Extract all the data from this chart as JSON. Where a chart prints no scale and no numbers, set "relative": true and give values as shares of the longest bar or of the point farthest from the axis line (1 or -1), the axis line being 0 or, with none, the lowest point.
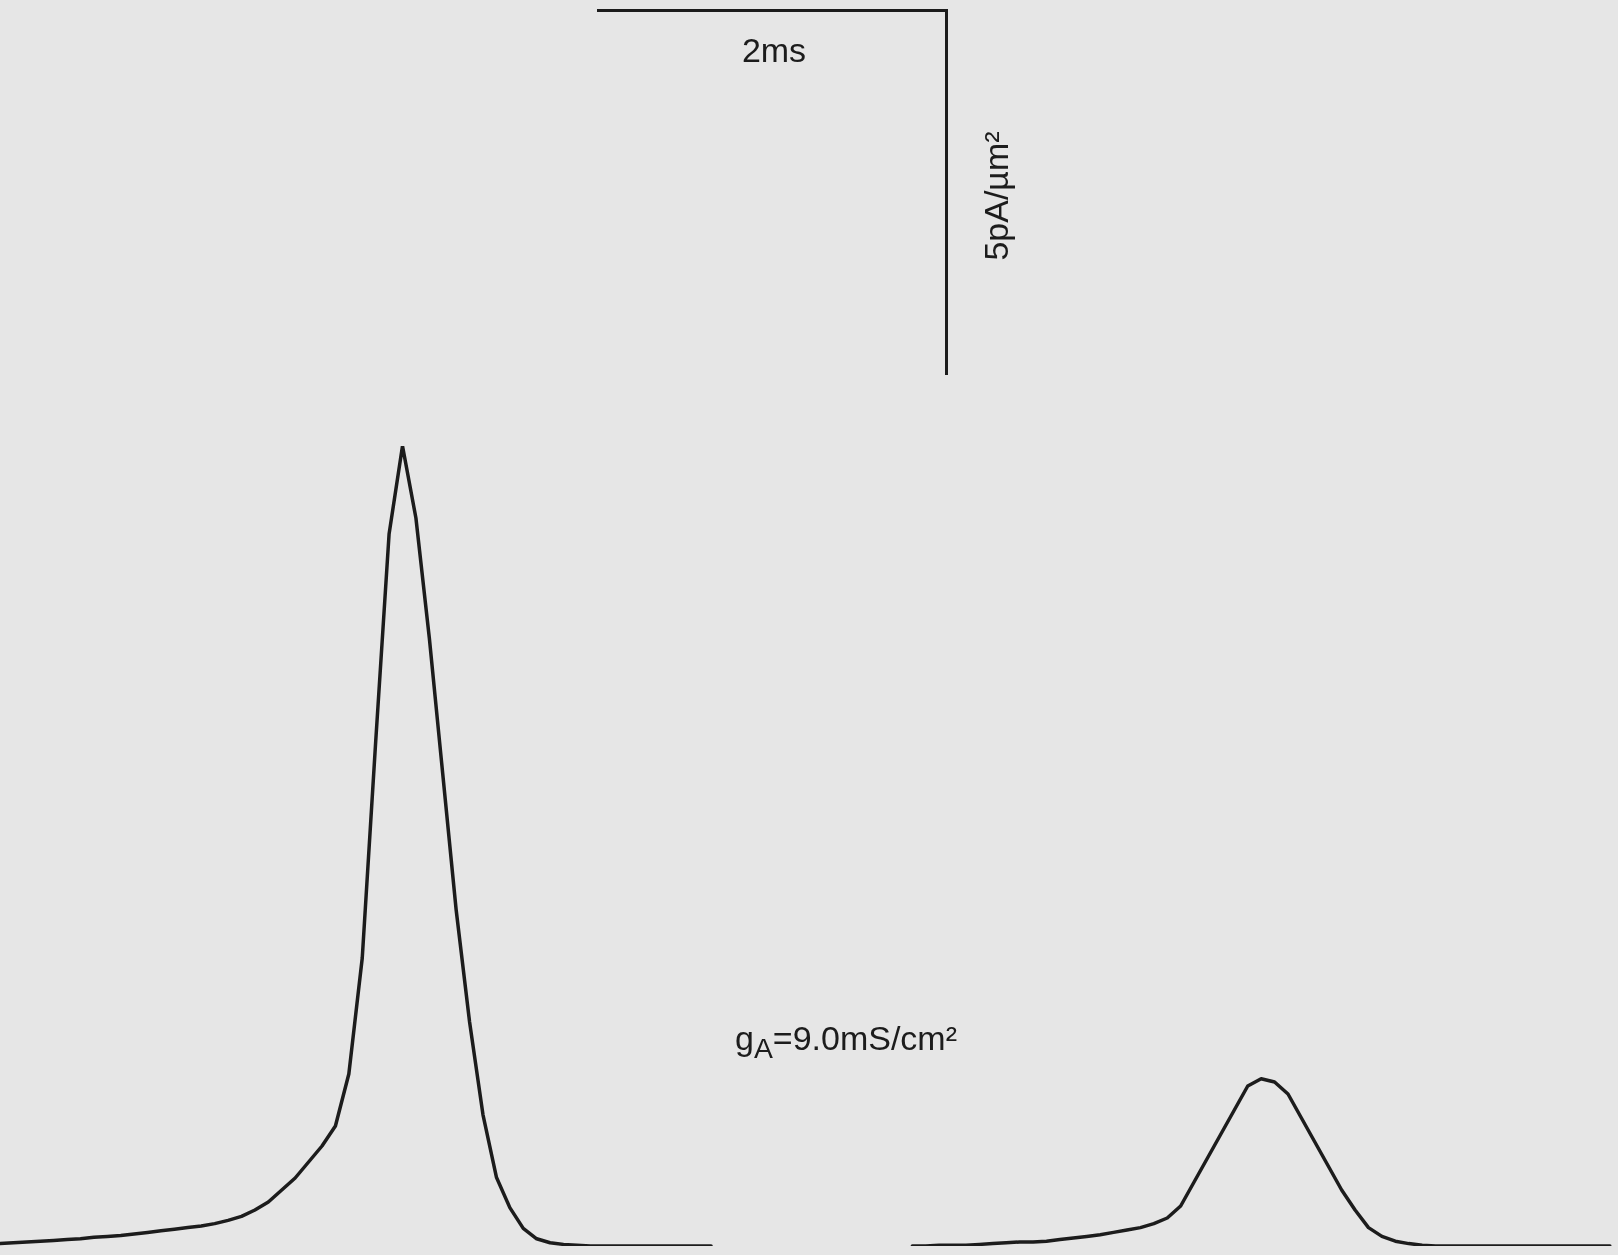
{
  "chart_data": {
    "type": "line",
    "relative": true,
    "annotations": [
      "2ms",
      "5pA/µm²",
      "g$_{A}$=9.0mS/cm²"
    ],
    "categories": [
      null,
      null,
      null,
      null,
      null,
      null,
      null,
      null,
      null,
      null,
      null,
      null,
      null,
      null,
      null,
      null,
      null,
      null,
      null,
      null,
      null,
      null,
      null,
      null,
      null,
      null,
      null,
      null,
      null,
      null,
      null,
      null,
      null,
      null,
      null,
      null,
      null,
      null,
      null,
      null,
      null,
      null,
      null,
      null,
      null,
      null,
      null,
      null,
      null,
      null,
      null,
      null,
      null,
      null,
      null,
      null,
      null,
      null,
      null,
      null,
      null,
      null,
      null,
      null,
      null,
      null,
      null,
      null,
      null,
      null,
      null,
      null,
      null,
      null,
      null,
      null,
      null,
      null,
      null,
      null,
      null,
      null,
      null,
      null,
      null,
      null,
      null,
      null,
      null,
      null,
      null,
      null,
      null,
      null,
      null,
      null,
      null,
      null,
      null,
      null,
      null,
      null,
      null,
      null,
      null,
      null,
      null,
      null,
      null,
      null,
      null,
      null,
      null,
      null,
      null,
      null,
      null,
      null,
      null,
      null,
      null
    ],
    "series": [
      {
        "color": "#1c1c1c",
        "values": [
          0.003,
          0.004,
          0.005,
          0.006,
          0.007,
          0.008,
          0.009,
          0.011,
          0.012,
          0.013,
          0.015,
          0.017,
          0.019,
          0.021,
          0.023,
          0.025,
          0.028,
          0.032,
          0.037,
          0.045,
          0.055,
          0.07,
          0.085,
          0.105,
          0.125,
          0.15,
          0.215,
          0.36,
          0.63,
          0.89,
          1.0,
          0.91,
          0.76,
          0.59,
          0.42,
          0.28,
          0.164,
          0.086,
          0.048,
          0.022,
          0.009,
          0.004,
          0.002,
          0.001,
          0,
          0,
          0,
          0,
          0,
          0,
          0,
          0,
          0,
          0,
          null,
          null,
          null,
          null,
          null,
          null,
          null,
          null,
          null,
          null,
          null,
          null,
          null,
          null,
          null,
          null,
          null,
          null,
          null,
          null,
          null,
          null,
          null,
          null,
          null,
          null,
          null,
          null,
          null,
          null,
          null,
          null,
          null,
          null,
          null,
          null,
          null,
          null,
          null,
          null,
          null,
          null,
          null,
          null,
          null,
          null,
          null,
          null,
          null,
          null,
          null,
          null,
          null,
          null,
          null,
          null,
          null,
          null,
          null,
          null,
          null,
          null,
          null,
          null,
          null,
          null,
          null
        ]
      },
      {
        "color": "#1c1c1c",
        "values": [
          null,
          null,
          null,
          null,
          null,
          null,
          null,
          null,
          null,
          null,
          null,
          null,
          null,
          null,
          null,
          null,
          null,
          null,
          null,
          null,
          null,
          null,
          null,
          null,
          null,
          null,
          null,
          null,
          null,
          null,
          null,
          null,
          null,
          null,
          null,
          null,
          null,
          null,
          null,
          null,
          null,
          null,
          null,
          null,
          null,
          null,
          null,
          null,
          null,
          null,
          null,
          null,
          null,
          null,
          null,
          null,
          null,
          null,
          null,
          null,
          null,
          null,
          null,
          null,
          null,
          null,
          null,
          null,
          0,
          0,
          0.001,
          0.001,
          0.001,
          0.002,
          0.003,
          0.004,
          0.005,
          0.005,
          0.006,
          0.008,
          0.01,
          0.012,
          0.014,
          0.017,
          0.02,
          0.023,
          0.028,
          0.035,
          0.05,
          0.08,
          0.11,
          0.14,
          0.17,
          0.2,
          0.209,
          0.205,
          0.19,
          0.16,
          0.13,
          0.1,
          0.07,
          0.045,
          0.023,
          0.012,
          0.006,
          0.003,
          0.001,
          0,
          0,
          0,
          0,
          0,
          0,
          0,
          0,
          0,
          0,
          0,
          0,
          0,
          0
        ]
      }
    ]
  }
}
